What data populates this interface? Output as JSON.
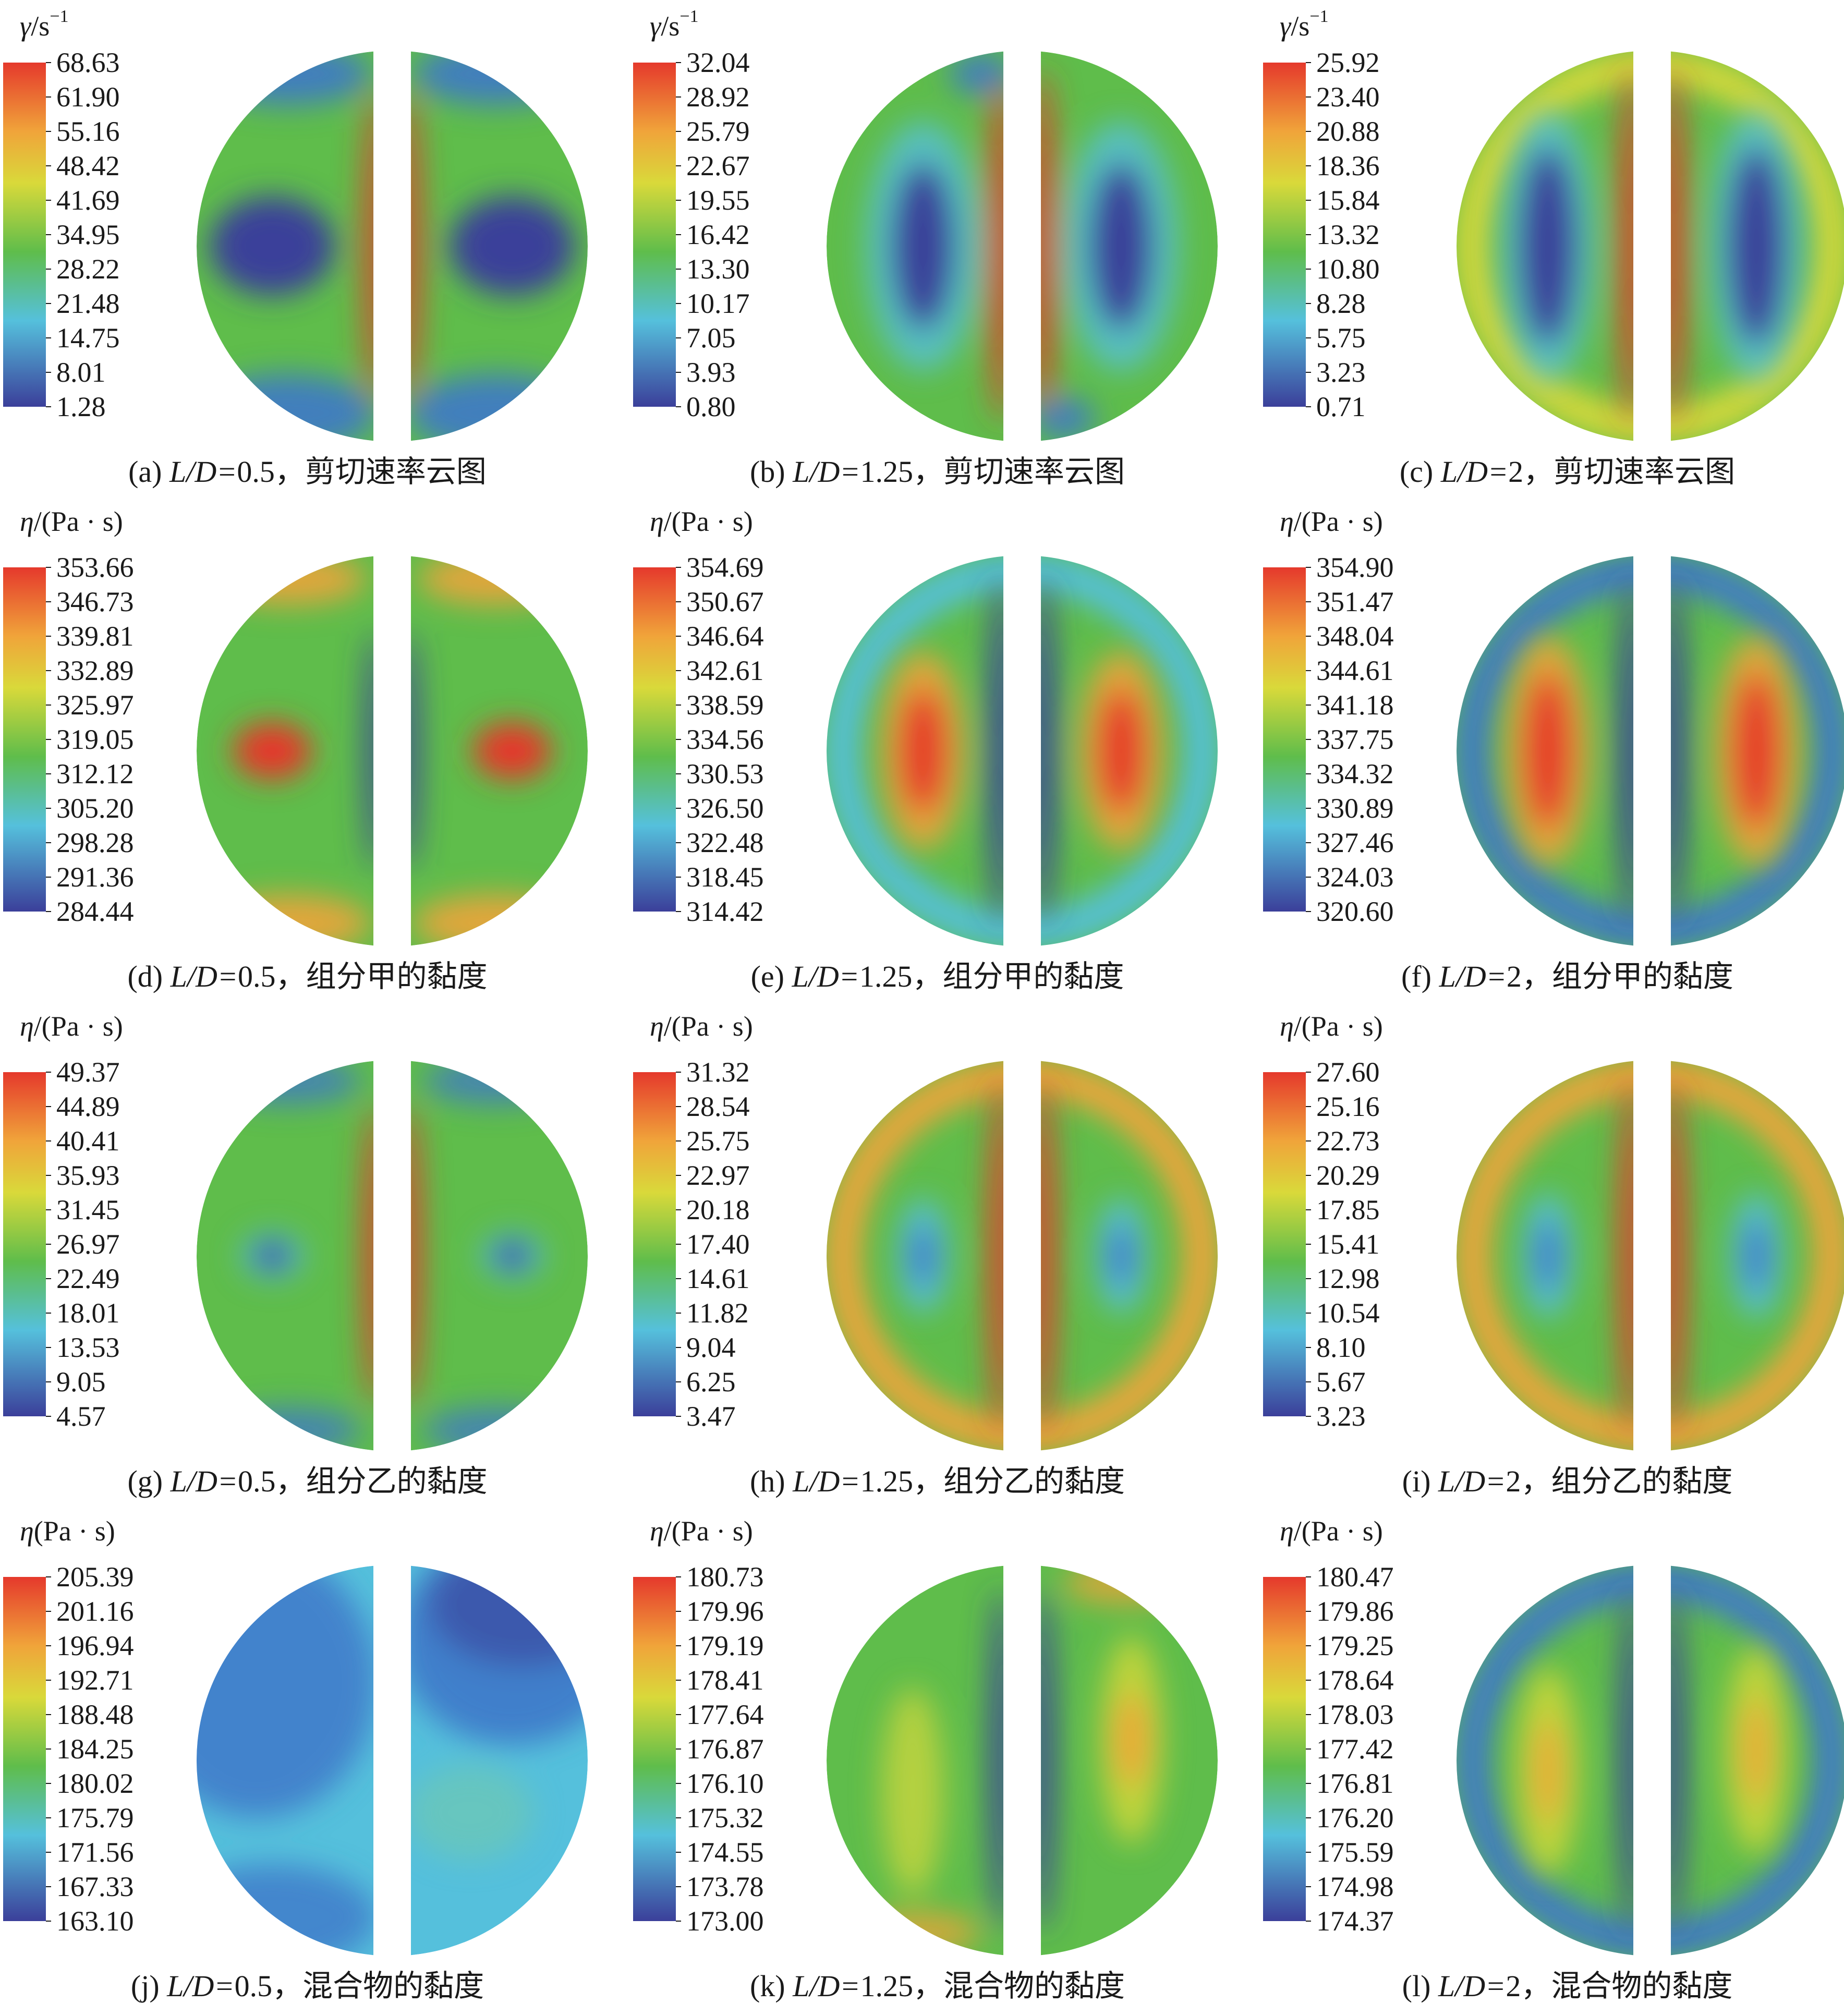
{
  "figure": {
    "panels": [
      {
        "id": "a",
        "tag": "(a)",
        "ratio": "0.5",
        "desc": "剪切速率云图",
        "unit_symbol": "γ",
        "unit_tail": "/s",
        "unit_sup": "−1",
        "ticks": [
          "68.63",
          "61.90",
          "55.16",
          "48.42",
          "41.69",
          "34.95",
          "28.22",
          "21.48",
          "14.75",
          "8.01",
          "1.28"
        ]
      },
      {
        "id": "b",
        "tag": "(b)",
        "ratio": "1.25",
        "desc": "剪切速率云图",
        "unit_symbol": "γ",
        "unit_tail": "/s",
        "unit_sup": "−1",
        "ticks": [
          "32.04",
          "28.92",
          "25.79",
          "22.67",
          "19.55",
          "16.42",
          "13.30",
          "10.17",
          "7.05",
          "3.93",
          "0.80"
        ]
      },
      {
        "id": "c",
        "tag": "(c)",
        "ratio": "2",
        "desc": "剪切速率云图",
        "unit_symbol": "γ",
        "unit_tail": "/s",
        "unit_sup": "−1",
        "ticks": [
          "25.92",
          "23.40",
          "20.88",
          "18.36",
          "15.84",
          "13.32",
          "10.80",
          "8.28",
          "5.75",
          "3.23",
          "0.71"
        ]
      },
      {
        "id": "d",
        "tag": "(d)",
        "ratio": "0.5",
        "desc": "组分甲的黏度",
        "unit_symbol": "η",
        "unit_tail": "/(Pa · s)",
        "unit_sup": "",
        "ticks": [
          "353.66",
          "346.73",
          "339.81",
          "332.89",
          "325.97",
          "319.05",
          "312.12",
          "305.20",
          "298.28",
          "291.36",
          "284.44"
        ]
      },
      {
        "id": "e",
        "tag": "(e)",
        "ratio": "1.25",
        "desc": "组分甲的黏度",
        "unit_symbol": "η",
        "unit_tail": "/(Pa · s)",
        "unit_sup": "",
        "ticks": [
          "354.69",
          "350.67",
          "346.64",
          "342.61",
          "338.59",
          "334.56",
          "330.53",
          "326.50",
          "322.48",
          "318.45",
          "314.42"
        ]
      },
      {
        "id": "f",
        "tag": "(f)",
        "ratio": "2",
        "desc": "组分甲的黏度",
        "unit_symbol": "η",
        "unit_tail": "/(Pa · s)",
        "unit_sup": "",
        "ticks": [
          "354.90",
          "351.47",
          "348.04",
          "344.61",
          "341.18",
          "337.75",
          "334.32",
          "330.89",
          "327.46",
          "324.03",
          "320.60"
        ]
      },
      {
        "id": "g",
        "tag": "(g)",
        "ratio": "0.5",
        "desc": "组分乙的黏度",
        "unit_symbol": "η",
        "unit_tail": "/(Pa · s)",
        "unit_sup": "",
        "ticks": [
          "49.37",
          "44.89",
          "40.41",
          "35.93",
          "31.45",
          "26.97",
          "22.49",
          "18.01",
          "13.53",
          "9.05",
          "4.57"
        ]
      },
      {
        "id": "h",
        "tag": "(h)",
        "ratio": "1.25",
        "desc": "组分乙的黏度",
        "unit_symbol": "η",
        "unit_tail": "/(Pa · s)",
        "unit_sup": "",
        "ticks": [
          "31.32",
          "28.54",
          "25.75",
          "22.97",
          "20.18",
          "17.40",
          "14.61",
          "11.82",
          "9.04",
          "6.25",
          "3.47"
        ]
      },
      {
        "id": "i",
        "tag": "(i)",
        "ratio": "2",
        "desc": "组分乙的黏度",
        "unit_symbol": "η",
        "unit_tail": "/(Pa · s)",
        "unit_sup": "",
        "ticks": [
          "27.60",
          "25.16",
          "22.73",
          "20.29",
          "17.85",
          "15.41",
          "12.98",
          "10.54",
          "8.10",
          "5.67",
          "3.23"
        ]
      },
      {
        "id": "j",
        "tag": "(j)",
        "ratio": "0.5",
        "desc": "混合物的黏度",
        "unit_symbol": "η",
        "unit_tail": "(Pa · s)",
        "unit_sup": "",
        "ticks": [
          "205.39",
          "201.16",
          "196.94",
          "192.71",
          "188.48",
          "184.25",
          "180.02",
          "175.79",
          "171.56",
          "167.33",
          "163.10"
        ]
      },
      {
        "id": "k",
        "tag": "(k)",
        "ratio": "1.25",
        "desc": "混合物的黏度",
        "unit_symbol": "η",
        "unit_tail": "/(Pa · s)",
        "unit_sup": "",
        "ticks": [
          "180.73",
          "179.96",
          "179.19",
          "178.41",
          "177.64",
          "176.87",
          "176.10",
          "175.32",
          "174.55",
          "173.78",
          "173.00"
        ]
      },
      {
        "id": "l",
        "tag": "(l)",
        "ratio": "2",
        "desc": "混合物的黏度",
        "unit_symbol": "η",
        "unit_tail": "/(Pa · s)",
        "unit_sup": "",
        "ticks": [
          "180.47",
          "179.86",
          "179.25",
          "178.64",
          "178.03",
          "177.42",
          "176.81",
          "176.20",
          "175.59",
          "174.98",
          "174.37"
        ]
      }
    ],
    "caption_ld": "L/D=",
    "caption_sep": "，",
    "colors": {
      "dark_blue": "#3b3f9a",
      "blue": "#3f78c9",
      "cyan": "#55c0dc",
      "green": "#5fbd4b",
      "yellow": "#d9d93a",
      "orange": "#f0a43a",
      "red": "#e5392c"
    }
  }
}
